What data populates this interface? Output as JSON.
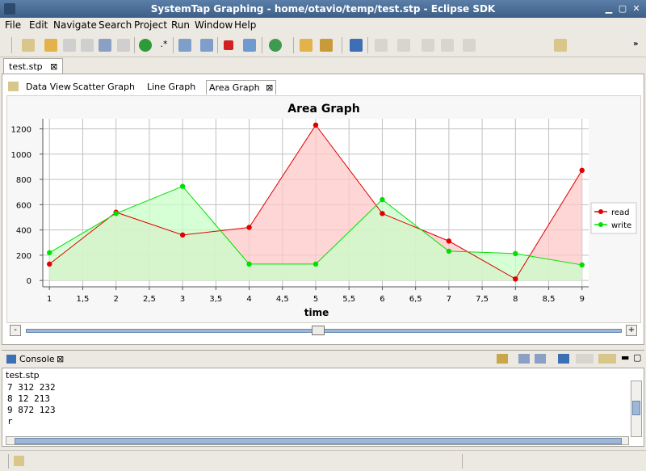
{
  "window": {
    "title": "SystemTap Graphing - home/otavio/temp/test.stp - Eclipse SDK"
  },
  "menu": [
    "File",
    "Edit",
    "Navigate",
    "Search",
    "Project",
    "Run",
    "Window",
    "Help"
  ],
  "editor": {
    "tab_label": "test.stp"
  },
  "view_tabs": [
    "Data View",
    "Scatter Graph",
    "Line Graph",
    "Area Graph"
  ],
  "active_view_tab": "Area Graph",
  "chart_data": {
    "type": "area",
    "title": "Area Graph",
    "xlabel": "time",
    "ylabel": "",
    "x": [
      1,
      2,
      3,
      4,
      5,
      6,
      7,
      8,
      9
    ],
    "xlim": [
      0.9,
      9.1
    ],
    "ylim": [
      -50,
      1280
    ],
    "xticks": [
      "1",
      "1,5",
      "2",
      "2,5",
      "3",
      "3,5",
      "4",
      "4,5",
      "5",
      "5,5",
      "6",
      "6,5",
      "7",
      "7,5",
      "8",
      "8,5",
      "9"
    ],
    "yticks": [
      "0",
      "200",
      "400",
      "600",
      "800",
      "1000",
      "1200"
    ],
    "grid": true,
    "legend": "right",
    "series": [
      {
        "name": "read",
        "values": [
          130,
          540,
          360,
          420,
          1230,
          530,
          312,
          12,
          872
        ],
        "color": "#e00000",
        "fill": "#ffc8c8"
      },
      {
        "name": "write",
        "values": [
          220,
          530,
          745,
          130,
          130,
          640,
          232,
          213,
          123
        ],
        "color": "#00e000",
        "fill": "#c8ffc8"
      }
    ]
  },
  "slider": {
    "minus": "-",
    "plus": "+",
    "value": 0.49
  },
  "console": {
    "tab_label": "Console",
    "source": "test.stp",
    "lines": [
      "7 312 232",
      "8 12 213",
      "9 872 123",
      "r"
    ]
  }
}
